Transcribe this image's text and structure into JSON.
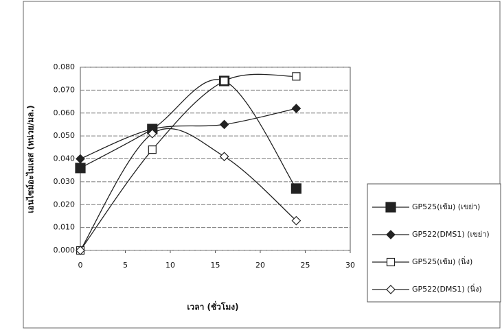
{
  "chart_data": {
    "type": "line",
    "x_label": "เวลา (ชั่วโมง)",
    "y_label": "เอนไซม์อะไมเลส (หน่วย/มล.)",
    "x": [
      0,
      8,
      16,
      24
    ],
    "xlim": [
      0,
      30
    ],
    "xticks": [
      0,
      5,
      10,
      15,
      20,
      25,
      30
    ],
    "ylim": [
      0,
      0.08
    ],
    "yticks": [
      {
        "value": 0,
        "label": "0.000"
      },
      {
        "value": 0.01,
        "label": "0.010"
      },
      {
        "value": 0.02,
        "label": "0.020"
      },
      {
        "value": 0.03,
        "label": "0.030"
      },
      {
        "value": 0.04,
        "label": "0.040"
      },
      {
        "value": 0.05,
        "label": "0.050"
      },
      {
        "value": 0.06,
        "label": "0.060"
      },
      {
        "value": 0.07,
        "label": "0.070"
      },
      {
        "value": 0.08,
        "label": "0.080"
      }
    ],
    "grid": true,
    "legend": "right",
    "smooth": true,
    "series": [
      {
        "name": "GP525(เข้ม) (เขย่า)",
        "color": "#222222",
        "marker": "filled-square",
        "values": [
          0.036,
          0.053,
          0.074,
          0.027
        ]
      },
      {
        "name": "GP522(DMS1) (เขย่า)",
        "color": "#222222",
        "marker": "filled-diamond",
        "values": [
          0.04,
          0.053,
          0.055,
          0.062
        ]
      },
      {
        "name": "GP525(เข้ม) (นิ่ง)",
        "color": "#222222",
        "marker": "open-square",
        "values": [
          0,
          0.044,
          0.074,
          0.076
        ]
      },
      {
        "name": "GP522(DMS1) (นิ่ง)",
        "color": "#222222",
        "marker": "open-diamond",
        "values": [
          0,
          0.051,
          0.041,
          0.013
        ]
      }
    ]
  }
}
